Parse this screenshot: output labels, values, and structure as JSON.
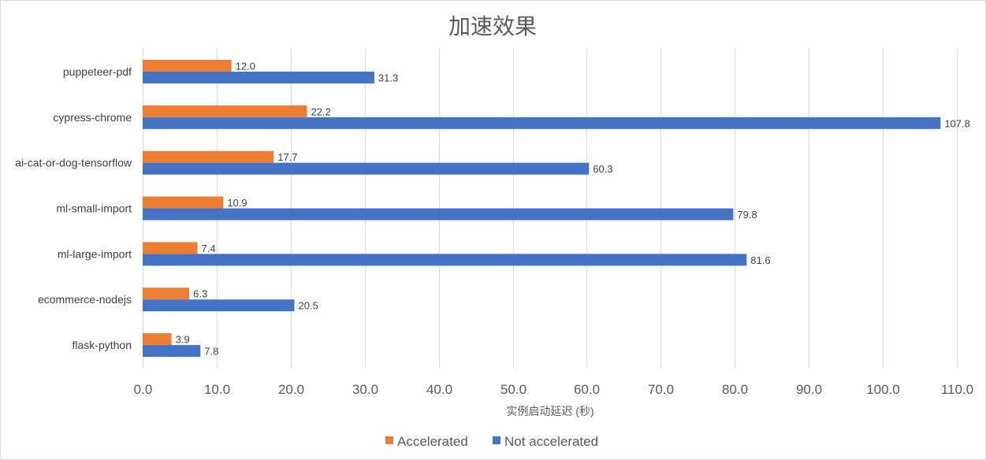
{
  "chart_data": {
    "type": "bar",
    "orientation": "horizontal",
    "title": "加速效果",
    "xlabel": "实例启动延迟 (秒)",
    "ylabel": "",
    "categories": [
      "puppeteer-pdf",
      "cypress-chrome",
      "ai-cat-or-dog-tensorflow",
      "ml-small-import",
      "ml-large-import",
      "ecommerce-nodejs",
      "flask-python"
    ],
    "series": [
      {
        "name": "Accelerated",
        "color": "#ed7d31",
        "values": [
          12.0,
          22.2,
          17.7,
          10.9,
          7.4,
          6.3,
          3.9
        ]
      },
      {
        "name": "Not accelerated",
        "color": "#4472c4",
        "values": [
          31.3,
          107.8,
          60.3,
          79.8,
          81.6,
          20.5,
          7.8
        ]
      }
    ],
    "xlim": [
      0,
      110
    ],
    "xticks": [
      "0.0",
      "10.0",
      "20.0",
      "30.0",
      "40.0",
      "50.0",
      "60.0",
      "70.0",
      "80.0",
      "90.0",
      "100.0",
      "110.0"
    ],
    "grid": true,
    "legend_position": "bottom",
    "gridline_color": "#d9d9d9"
  }
}
